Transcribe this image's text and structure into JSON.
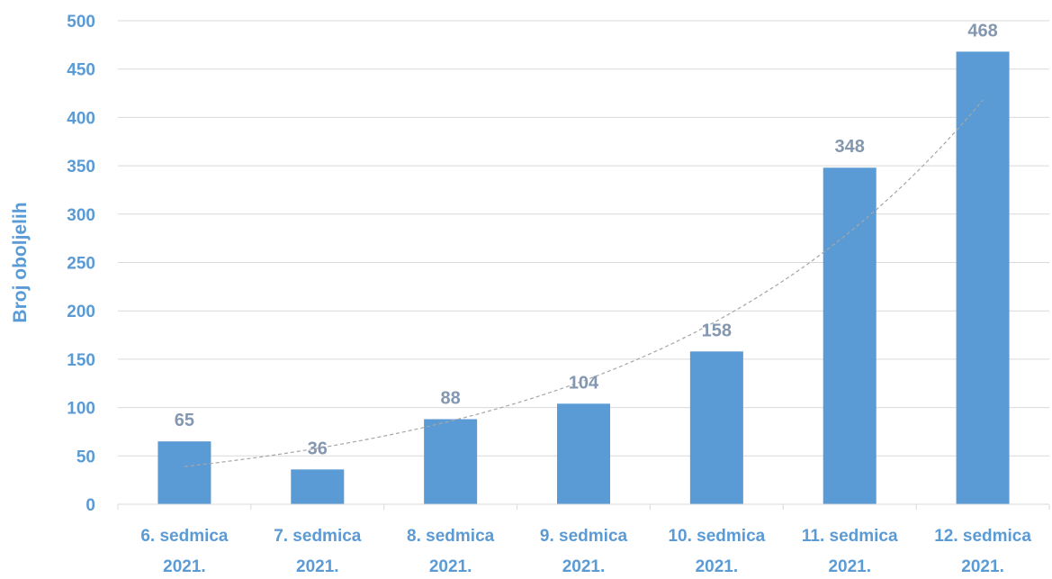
{
  "chart_data": {
    "type": "bar",
    "title": "",
    "xlabel": "",
    "ylabel": "Broj oboljelih",
    "categories": [
      [
        "6. sedmica",
        "2021."
      ],
      [
        "7. sedmica",
        "2021."
      ],
      [
        "8. sedmica",
        "2021."
      ],
      [
        "9. sedmica",
        "2021."
      ],
      [
        "10. sedmica",
        "2021."
      ],
      [
        "11. sedmica",
        "2021."
      ],
      [
        "12. sedmica",
        "2021."
      ]
    ],
    "values": [
      65,
      36,
      88,
      104,
      158,
      348,
      468
    ],
    "data_labels": [
      "65",
      "36",
      "88",
      "104",
      "158",
      "348",
      "468"
    ],
    "ylim": [
      0,
      500
    ],
    "yticks": [
      0,
      50,
      100,
      150,
      200,
      250,
      300,
      350,
      400,
      450,
      500
    ],
    "grid": true,
    "legend": "none",
    "trendline": {
      "type": "exponential",
      "style": "dashed",
      "start_value": 39,
      "end_value": 418
    },
    "colors": {
      "bar": "#5b9bd5",
      "axis_text": "#5b9bd5",
      "data_label": "#8497b0",
      "grid": "#d9d9d9",
      "trendline": "#a6a6a6"
    }
  }
}
